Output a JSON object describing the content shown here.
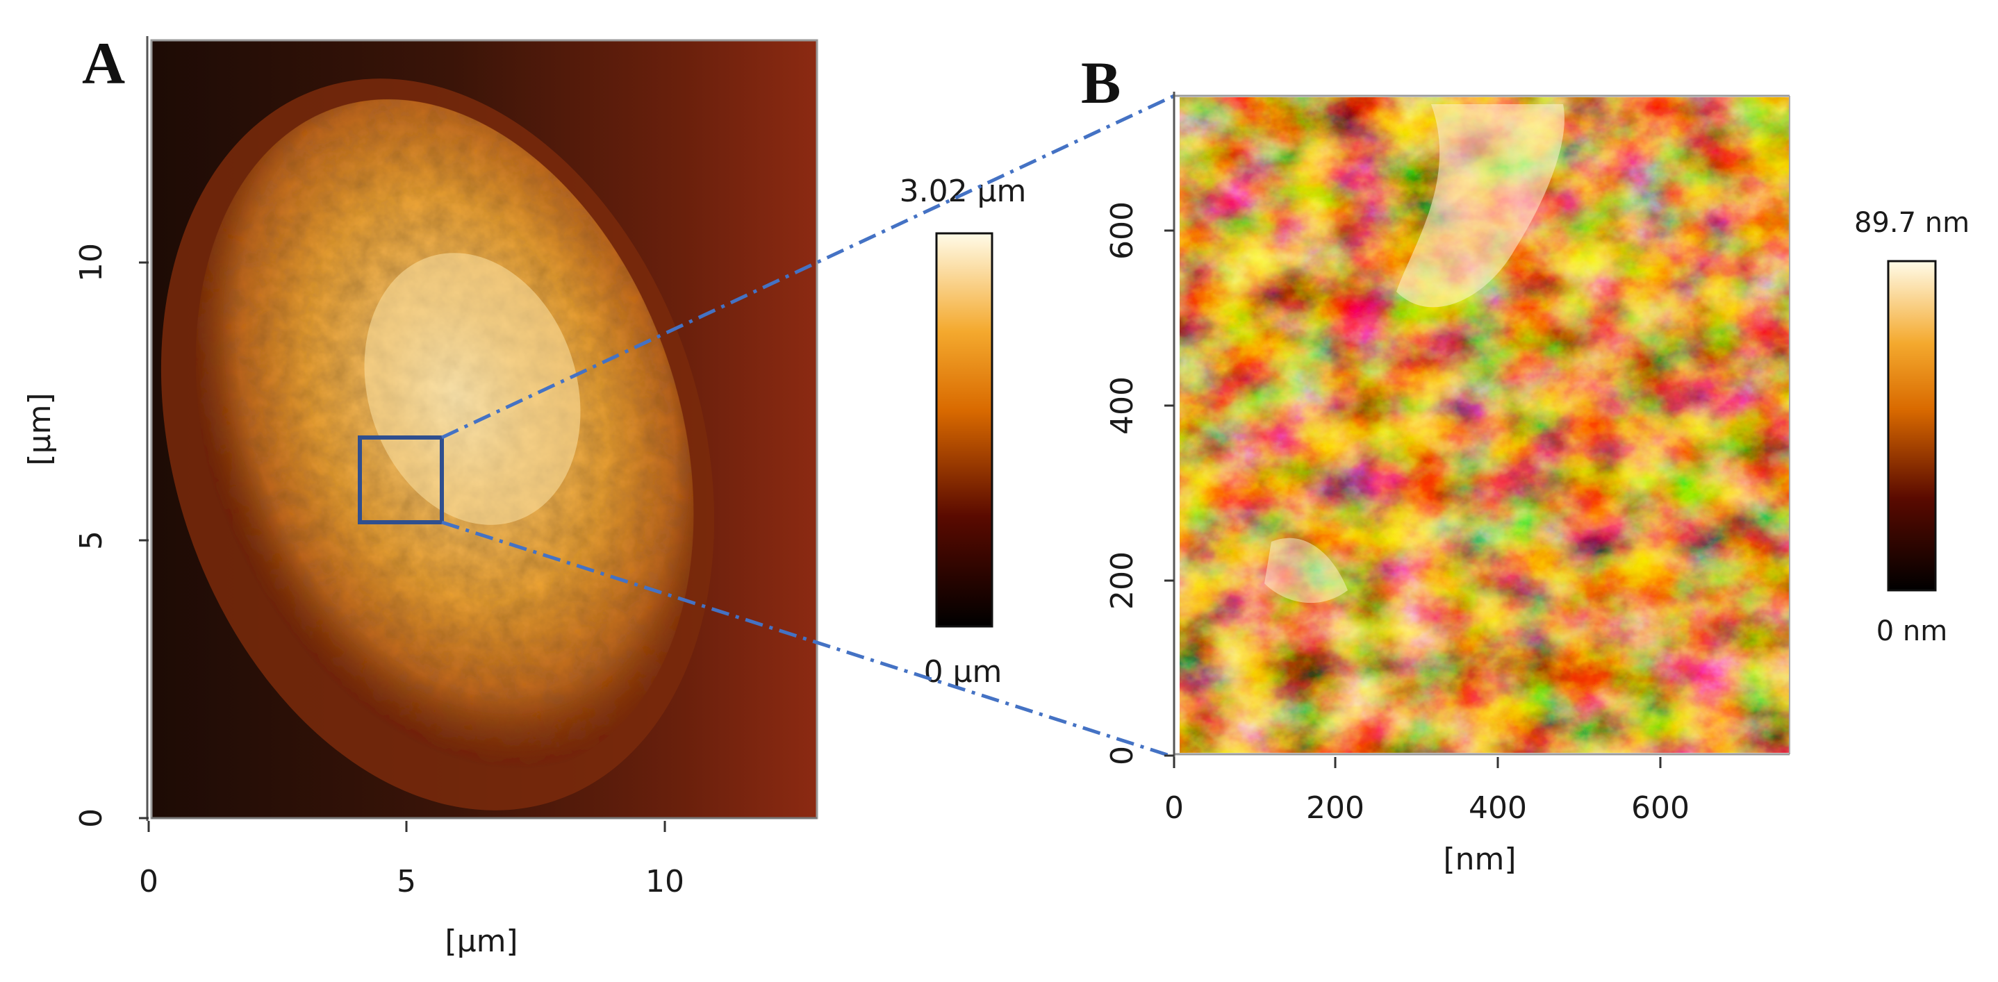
{
  "figure": {
    "panel_a": {
      "letter": "A",
      "x_ticks": [
        "0",
        "5",
        "10"
      ],
      "y_ticks": [
        "0",
        "5",
        "10"
      ],
      "x_label": "[µm]",
      "y_label": "[µm]",
      "colorbar": {
        "max_label": "3.02 µm",
        "min_label": "0 µm"
      }
    },
    "panel_b": {
      "letter": "B",
      "x_ticks": [
        "0",
        "200",
        "400",
        "600"
      ],
      "y_ticks": [
        "0",
        "200",
        "400",
        "600"
      ],
      "x_label": "[nm]",
      "colorbar": {
        "max_label": "89.7 nm",
        "min_label": "0 nm"
      }
    },
    "colors": {
      "zoom_box": "#2f4f8f",
      "zoom_lines": "#4472c4",
      "afm_dark": "#1a0a04",
      "afm_mid": "#a0400e",
      "afm_bright": "#f3a12e",
      "afm_peak": "#fff6d6"
    },
    "colormap": "afmhot"
  }
}
